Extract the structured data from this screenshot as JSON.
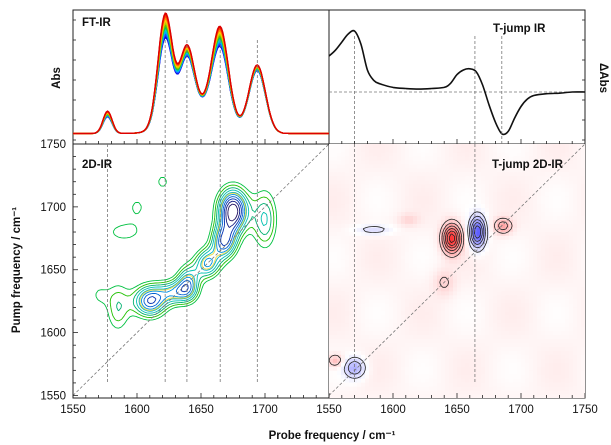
{
  "chart_data": [
    {
      "id": "ftir",
      "type": "line",
      "title": "FT-IR",
      "ylabel": "Abs",
      "xlim": [
        1550,
        1750
      ],
      "x_peaks": [
        1577,
        1622,
        1639,
        1665,
        1694
      ],
      "series_count": 22,
      "series_colors": [
        "#0000dd",
        "#2040ff",
        "#00a0ff",
        "#00d0d0",
        "#00c060",
        "#60c000",
        "#b0d000",
        "#ffd000",
        "#ff9000",
        "#ff4000",
        "#dd0000"
      ],
      "guide_lines_x": [
        1622,
        1639,
        1665,
        1694
      ]
    },
    {
      "id": "tjump_ir",
      "type": "line",
      "title": "T-jump  IR",
      "ylabel": "ΔAbs",
      "xlim": [
        1550,
        1750
      ],
      "x": [
        1550,
        1555,
        1560,
        1565,
        1570,
        1575,
        1580,
        1585,
        1590,
        1600,
        1610,
        1620,
        1630,
        1640,
        1645,
        1650,
        1655,
        1660,
        1665,
        1670,
        1675,
        1680,
        1685,
        1690,
        1695,
        1700,
        1705,
        1710,
        1720,
        1730,
        1740,
        1750
      ],
      "y": [
        0.62,
        0.72,
        0.86,
        1.0,
        1.05,
        0.82,
        0.38,
        0.2,
        0.14,
        0.08,
        0.06,
        0.05,
        0.06,
        0.08,
        0.15,
        0.3,
        0.38,
        0.4,
        0.35,
        0.12,
        -0.22,
        -0.52,
        -0.72,
        -0.68,
        -0.45,
        -0.25,
        -0.12,
        -0.06,
        -0.03,
        -0.02,
        0.0,
        0.0
      ],
      "zero_line": true,
      "guide_lines_x": [
        1570,
        1664,
        1685
      ]
    },
    {
      "id": "twodir",
      "type": "contour",
      "title": "2D-IR",
      "ylabel": "Pump frequency / cm⁻¹",
      "xlabel": "Probe frequency / cm⁻¹",
      "xlim": [
        1550,
        1750
      ],
      "ylim": [
        1548,
        1750
      ],
      "x_ticks": [
        "1550",
        "1600",
        "1650",
        "1700"
      ],
      "y_ticks": [
        "1550",
        "1600",
        "1650",
        "1700",
        "1750"
      ],
      "diagonal": true,
      "guide_lines_x": [
        1577,
        1622,
        1639,
        1665,
        1694
      ],
      "peaks": [
        {
          "x": 1675,
          "y": 1697,
          "a": 1.0,
          "sx": 12,
          "sy": 18
        },
        {
          "x": 1668,
          "y": 1672,
          "a": 0.7,
          "sx": 10,
          "sy": 14
        },
        {
          "x": 1610,
          "y": 1625,
          "a": 0.75,
          "sx": 13,
          "sy": 13
        },
        {
          "x": 1655,
          "y": 1655,
          "a": 0.6,
          "sx": 10,
          "sy": 12
        },
        {
          "x": 1640,
          "y": 1640,
          "a": 0.55,
          "sx": 9,
          "sy": 14
        },
        {
          "x": 1700,
          "y": 1690,
          "a": 0.45,
          "sx": 10,
          "sy": 25
        },
        {
          "x": 1630,
          "y": 1632,
          "a": 0.5,
          "sx": 14,
          "sy": 10
        },
        {
          "x": 1585,
          "y": 1620,
          "a": 0.35,
          "sx": 10,
          "sy": 22
        },
        {
          "x": 1590,
          "y": 1680,
          "a": 0.25,
          "sx": 18,
          "sy": 10
        },
        {
          "x": 1570,
          "y": 1630,
          "a": 0.2,
          "sx": 8,
          "sy": 10
        },
        {
          "x": 1600,
          "y": 1700,
          "a": 0.22,
          "sx": 10,
          "sy": 12
        },
        {
          "x": 1620,
          "y": 1720,
          "a": 0.22,
          "sx": 10,
          "sy": 12
        }
      ],
      "levels": [
        0.2,
        0.28,
        0.36,
        0.44,
        0.52,
        0.6,
        0.68,
        0.76,
        0.84,
        0.92
      ],
      "colors": [
        "#00c040",
        "#20c000",
        "#00b070",
        "#00c0b0",
        "#00b0d0",
        "#0090e0",
        "#0060d0",
        "#0030b0",
        "#101880",
        "#201060"
      ]
    },
    {
      "id": "tjump_2dir",
      "type": "contour",
      "title": "T-jump  2D-IR",
      "xlim": [
        1550,
        1750
      ],
      "ylim": [
        1548,
        1750
      ],
      "x_ticks": [
        "1550",
        "1600",
        "1650",
        "1700",
        "1750"
      ],
      "diagonal": true,
      "guide_lines_x": [
        1570,
        1664
      ],
      "peaks": [
        {
          "x": 1646,
          "y": 1675,
          "a": 1.0,
          "sx": 7,
          "sy": 11
        },
        {
          "x": 1666,
          "y": 1680,
          "a": -0.9,
          "sx": 6,
          "sy": 12
        },
        {
          "x": 1686,
          "y": 1685,
          "a": 0.4,
          "sx": 7,
          "sy": 6
        },
        {
          "x": 1570,
          "y": 1572,
          "a": -0.45,
          "sx": 8,
          "sy": 8
        },
        {
          "x": 1555,
          "y": 1578,
          "a": 0.3,
          "sx": 6,
          "sy": 5
        },
        {
          "x": 1585,
          "y": 1682,
          "a": -0.22,
          "sx": 14,
          "sy": 4
        },
        {
          "x": 1640,
          "y": 1640,
          "a": 0.18,
          "sx": 8,
          "sy": 10
        },
        {
          "x": 1612,
          "y": 1690,
          "a": 0.15,
          "sx": 8,
          "sy": 5
        }
      ],
      "levels": [
        0.15,
        0.3,
        0.45,
        0.6,
        0.75,
        0.9
      ]
    }
  ]
}
